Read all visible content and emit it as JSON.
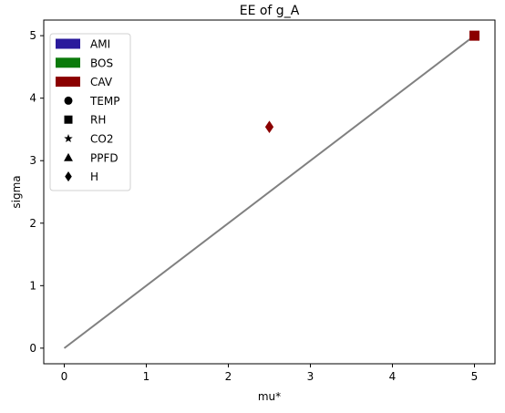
{
  "chart_data": {
    "type": "scatter",
    "title": "EE of g_A",
    "xlabel": "mu*",
    "ylabel": "sigma",
    "xlim": [
      -0.25,
      5.25
    ],
    "ylim": [
      -0.25,
      5.25
    ],
    "xticks": [
      0,
      1,
      2,
      3,
      4,
      5
    ],
    "yticks": [
      0,
      1,
      2,
      3,
      4,
      5
    ],
    "grid": false,
    "legend_placement": "top-left",
    "reference_line": {
      "x": [
        0,
        5
      ],
      "y": [
        0,
        5
      ],
      "color": "#808080"
    },
    "legend": {
      "sites": [
        {
          "name": "AMI",
          "color": "#2a1a9c"
        },
        {
          "name": "BOS",
          "color": "#0b7a0b"
        },
        {
          "name": "CAV",
          "color": "#8b0000"
        }
      ],
      "variables": [
        {
          "name": "TEMP",
          "marker": "circle"
        },
        {
          "name": "RH",
          "marker": "square"
        },
        {
          "name": "CO2",
          "marker": "star"
        },
        {
          "name": "PPFD",
          "marker": "triangle"
        },
        {
          "name": "H",
          "marker": "diamond"
        }
      ]
    },
    "points": [
      {
        "site": "CAV",
        "variable": "H",
        "x": 2.5,
        "y": 3.54,
        "color": "#8b0000",
        "marker": "diamond"
      },
      {
        "site": "CAV",
        "variable": "RH",
        "x": 5.0,
        "y": 5.0,
        "color": "#8b0000",
        "marker": "square"
      }
    ]
  }
}
